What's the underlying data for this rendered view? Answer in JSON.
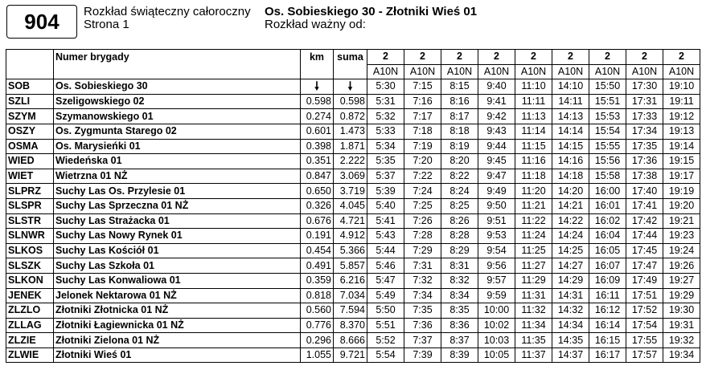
{
  "route": {
    "number": "904"
  },
  "header": {
    "schedule_type": "Rozkład świąteczny całoroczny",
    "page": "Strona 1",
    "line_name": "Os. Sobieskiego 30 - Złotniki Wieś 01",
    "valid_from": "Rozkład ważny od:"
  },
  "table": {
    "col_headers": {
      "code": "",
      "name": "Numer brygady",
      "km": "km",
      "sum": "suma"
    },
    "brigades": [
      "2",
      "2",
      "2",
      "2",
      "2",
      "2",
      "2",
      "2",
      "2"
    ],
    "variants": [
      "A10N",
      "A10N",
      "A10N",
      "A10N",
      "A10N",
      "A10N",
      "A10N",
      "A10N",
      "A10N"
    ],
    "first_row": {
      "code": "SOB",
      "name": "Os. Sobieskiego 30",
      "km_arrow": "down-arrow-icon",
      "sum_arrow": "down-arrow-icon",
      "times": [
        "5:30",
        "7:15",
        "8:15",
        "9:40",
        "11:10",
        "14:10",
        "15:50",
        "17:30",
        "19:10"
      ]
    },
    "stops": [
      {
        "code": "SZLI",
        "name": "Szeligowskiego 02",
        "km": "0.598",
        "sum": "0.598",
        "times": [
          "5:31",
          "7:16",
          "8:16",
          "9:41",
          "11:11",
          "14:11",
          "15:51",
          "17:31",
          "19:11"
        ]
      },
      {
        "code": "SZYM",
        "name": "Szymanowskiego 01",
        "km": "0.274",
        "sum": "0.872",
        "times": [
          "5:32",
          "7:17",
          "8:17",
          "9:42",
          "11:13",
          "14:13",
          "15:53",
          "17:33",
          "19:12"
        ]
      },
      {
        "code": "OSZY",
        "name": "Os. Zygmunta Starego 02",
        "km": "0.601",
        "sum": "1.473",
        "times": [
          "5:33",
          "7:18",
          "8:18",
          "9:43",
          "11:14",
          "14:14",
          "15:54",
          "17:34",
          "19:13"
        ]
      },
      {
        "code": "OSMA",
        "name": "Os. Marysieńki 01",
        "km": "0.398",
        "sum": "1.871",
        "times": [
          "5:34",
          "7:19",
          "8:19",
          "9:44",
          "11:15",
          "14:15",
          "15:55",
          "17:35",
          "19:14"
        ]
      },
      {
        "code": "WIED",
        "name": "Wiedeńska 01",
        "km": "0.351",
        "sum": "2.222",
        "times": [
          "5:35",
          "7:20",
          "8:20",
          "9:45",
          "11:16",
          "14:16",
          "15:56",
          "17:36",
          "19:15"
        ]
      },
      {
        "code": "WIET",
        "name": "Wietrzna 01 NŻ",
        "km": "0.847",
        "sum": "3.069",
        "times": [
          "5:37",
          "7:22",
          "8:22",
          "9:47",
          "11:18",
          "14:18",
          "15:58",
          "17:38",
          "19:17"
        ]
      },
      {
        "code": "SLPRZ",
        "name": "Suchy Las Os. Przylesie 01",
        "km": "0.650",
        "sum": "3.719",
        "times": [
          "5:39",
          "7:24",
          "8:24",
          "9:49",
          "11:20",
          "14:20",
          "16:00",
          "17:40",
          "19:19"
        ]
      },
      {
        "code": "SLSPR",
        "name": "Suchy Las Sprzeczna 01 NŻ",
        "km": "0.326",
        "sum": "4.045",
        "times": [
          "5:40",
          "7:25",
          "8:25",
          "9:50",
          "11:21",
          "14:21",
          "16:01",
          "17:41",
          "19:20"
        ]
      },
      {
        "code": "SLSTR",
        "name": "Suchy Las Strażacka 01",
        "km": "0.676",
        "sum": "4.721",
        "times": [
          "5:41",
          "7:26",
          "8:26",
          "9:51",
          "11:22",
          "14:22",
          "16:02",
          "17:42",
          "19:21"
        ]
      },
      {
        "code": "SLNWR",
        "name": "Suchy Las Nowy Rynek 01",
        "km": "0.191",
        "sum": "4.912",
        "times": [
          "5:43",
          "7:28",
          "8:28",
          "9:53",
          "11:24",
          "14:24",
          "16:04",
          "17:44",
          "19:23"
        ]
      },
      {
        "code": "SLKOS",
        "name": "Suchy Las Kościół 01",
        "km": "0.454",
        "sum": "5.366",
        "times": [
          "5:44",
          "7:29",
          "8:29",
          "9:54",
          "11:25",
          "14:25",
          "16:05",
          "17:45",
          "19:24"
        ]
      },
      {
        "code": "SLSZK",
        "name": "Suchy Las Szkoła 01",
        "km": "0.491",
        "sum": "5.857",
        "times": [
          "5:46",
          "7:31",
          "8:31",
          "9:56",
          "11:27",
          "14:27",
          "16:07",
          "17:47",
          "19:26"
        ]
      },
      {
        "code": "SLKON",
        "name": "Suchy Las Konwaliowa 01",
        "km": "0.359",
        "sum": "6.216",
        "times": [
          "5:47",
          "7:32",
          "8:32",
          "9:57",
          "11:29",
          "14:29",
          "16:09",
          "17:49",
          "19:27"
        ]
      },
      {
        "code": "JENEK",
        "name": "Jelonek Nektarowa 01 NŻ",
        "km": "0.818",
        "sum": "7.034",
        "times": [
          "5:49",
          "7:34",
          "8:34",
          "9:59",
          "11:31",
          "14:31",
          "16:11",
          "17:51",
          "19:29"
        ]
      },
      {
        "code": "ZLZLO",
        "name": "Złotniki Złotnicka 01 NŻ",
        "km": "0.560",
        "sum": "7.594",
        "times": [
          "5:50",
          "7:35",
          "8:35",
          "10:00",
          "11:32",
          "14:32",
          "16:12",
          "17:52",
          "19:30"
        ]
      },
      {
        "code": "ZLLAG",
        "name": "Złotniki Łagiewnicka 01 NŻ",
        "km": "0.776",
        "sum": "8.370",
        "times": [
          "5:51",
          "7:36",
          "8:36",
          "10:02",
          "11:34",
          "14:34",
          "16:14",
          "17:54",
          "19:31"
        ]
      },
      {
        "code": "ZLZIE",
        "name": "Złotniki Zielona 01 NŻ",
        "km": "0.296",
        "sum": "8.666",
        "times": [
          "5:52",
          "7:37",
          "8:37",
          "10:03",
          "11:35",
          "14:35",
          "16:15",
          "17:55",
          "19:32"
        ]
      },
      {
        "code": "ZLWIE",
        "name": "Złotniki Wieś 01",
        "km": "1.055",
        "sum": "9.721",
        "times": [
          "5:54",
          "7:39",
          "8:39",
          "10:05",
          "11:37",
          "14:37",
          "16:17",
          "17:57",
          "19:34"
        ]
      }
    ]
  }
}
